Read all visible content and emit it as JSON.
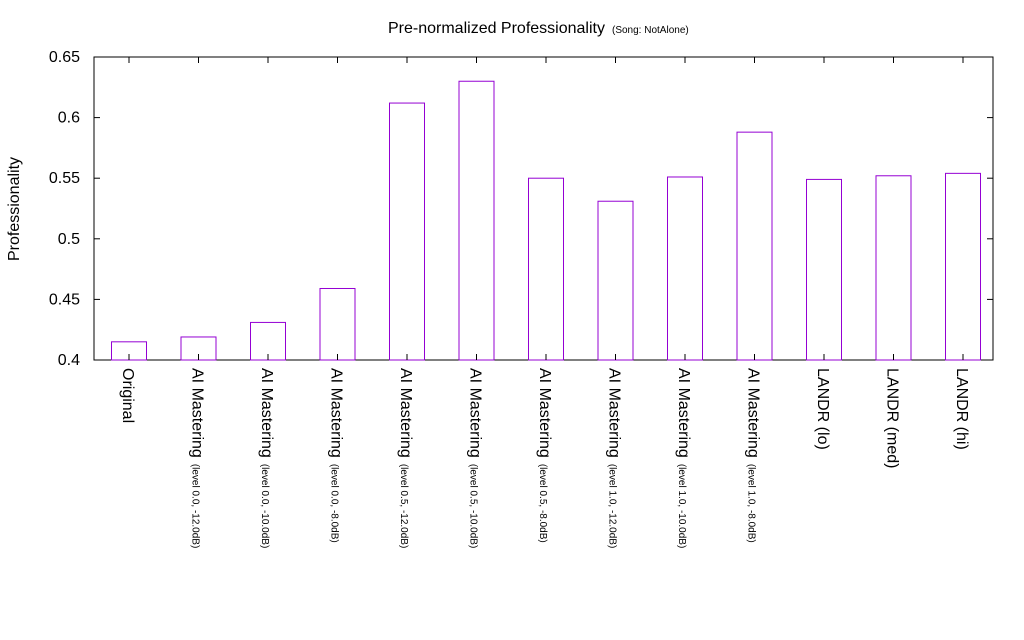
{
  "chart_data": {
    "type": "bar",
    "title": "Pre-normalized Professionality",
    "subtitle": "(Song: NotAlone)",
    "ylabel": "Professionality",
    "xlabel": "",
    "ylim": [
      0.4,
      0.65
    ],
    "yticks": [
      "0.4",
      "0.45",
      "0.5",
      "0.55",
      "0.6",
      "0.65"
    ],
    "grid": false,
    "bar_color": "#9400D3",
    "categories": [
      {
        "label": "Original",
        "sub": ""
      },
      {
        "label": "AI Mastering",
        "sub": "(level 0.0, -12.0dB)"
      },
      {
        "label": "AI Mastering",
        "sub": "(level 0.0, -10.0dB)"
      },
      {
        "label": "AI Mastering",
        "sub": "(level 0.0, -8.0dB)"
      },
      {
        "label": "AI Mastering",
        "sub": "(level 0.5, -12.0dB)"
      },
      {
        "label": "AI Mastering",
        "sub": "(level 0.5, -10.0dB)"
      },
      {
        "label": "AI Mastering",
        "sub": "(level 0.5, -8.0dB)"
      },
      {
        "label": "AI Mastering",
        "sub": "(level 1.0, -12.0dB)"
      },
      {
        "label": "AI Mastering",
        "sub": "(level 1.0, -10.0dB)"
      },
      {
        "label": "AI Mastering",
        "sub": "(level 1.0, -8.0dB)"
      },
      {
        "label": "LANDR (lo)",
        "sub": ""
      },
      {
        "label": "LANDR (med)",
        "sub": ""
      },
      {
        "label": "LANDR (hi)",
        "sub": ""
      }
    ],
    "values": [
      0.415,
      0.419,
      0.431,
      0.459,
      0.612,
      0.63,
      0.55,
      0.531,
      0.551,
      0.588,
      0.549,
      0.552,
      0.554
    ]
  }
}
